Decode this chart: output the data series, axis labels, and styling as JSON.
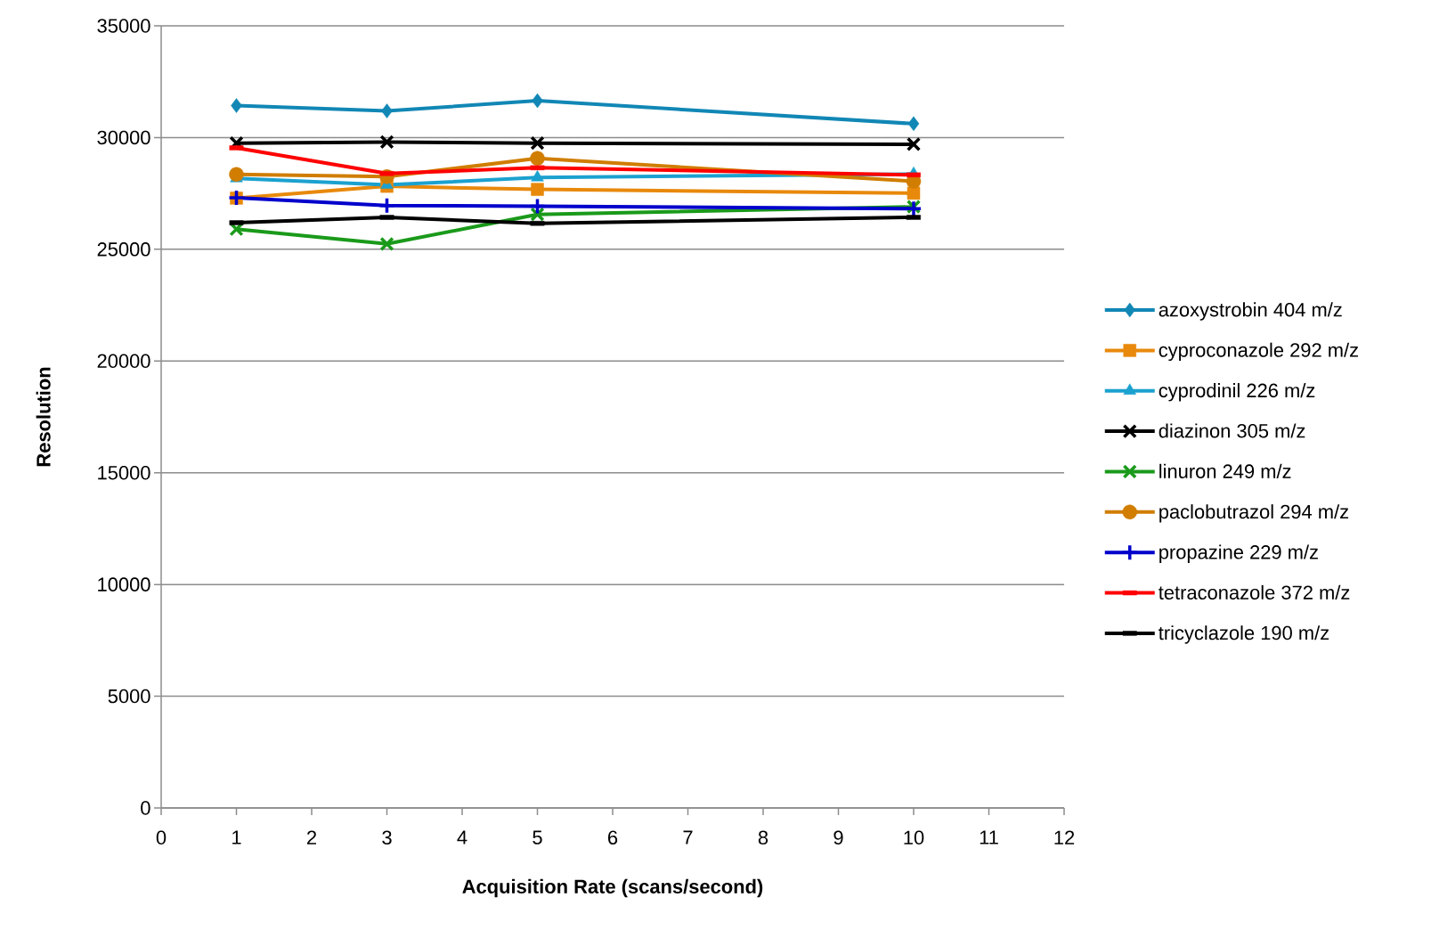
{
  "chart_data": {
    "type": "line",
    "xlabel": "Acquisition Rate (scans/second)",
    "ylabel": "Resolution",
    "x": [
      1,
      3,
      5,
      10
    ],
    "xlim": [
      0,
      12
    ],
    "xticks": [
      0,
      1,
      2,
      3,
      4,
      5,
      6,
      7,
      8,
      9,
      10,
      11,
      12
    ],
    "ylim": [
      0,
      35000
    ],
    "yticks": [
      0,
      5000,
      10000,
      15000,
      20000,
      25000,
      30000,
      35000
    ],
    "grid": "y",
    "legend": "right",
    "line_style": "solid",
    "series": [
      {
        "name": "azoxystrobin 404 m/z",
        "color": "#1187b5",
        "marker": "diamond",
        "values": [
          31430,
          31190,
          31650,
          30620
        ]
      },
      {
        "name": "cyproconazole 292 m/z",
        "color": "#e8890c",
        "marker": "square",
        "values": [
          27290,
          27820,
          27680,
          27510
        ]
      },
      {
        "name": "cyprodinil 226 m/z",
        "color": "#1ba1cf",
        "marker": "triangle",
        "values": [
          28170,
          27880,
          28210,
          28370
        ]
      },
      {
        "name": "diazinon 305 m/z",
        "color": "#000000",
        "marker": "cross",
        "values": [
          29750,
          29800,
          29750,
          29700
        ]
      },
      {
        "name": "linuron 249 m/z",
        "color": "#1a9a1a",
        "marker": "cross",
        "values": [
          25900,
          25240,
          26560,
          26900
        ]
      },
      {
        "name": "paclobutrazol 294 m/z",
        "color": "#d07d00",
        "marker": "circle",
        "values": [
          28350,
          28250,
          29070,
          28040
        ]
      },
      {
        "name": "propazine 229 m/z",
        "color": "#0000cc",
        "marker": "plus",
        "values": [
          27310,
          26960,
          26930,
          26820
        ]
      },
      {
        "name": "tetraconazole 372 m/z",
        "color": "#ff0000",
        "marker": "square",
        "values": [
          29540,
          28390,
          28650,
          28330
        ]
      },
      {
        "name": "tricyclazole 190 m/z",
        "color": "#000000",
        "marker": "square",
        "values": [
          26190,
          26430,
          26160,
          26430
        ]
      }
    ]
  }
}
